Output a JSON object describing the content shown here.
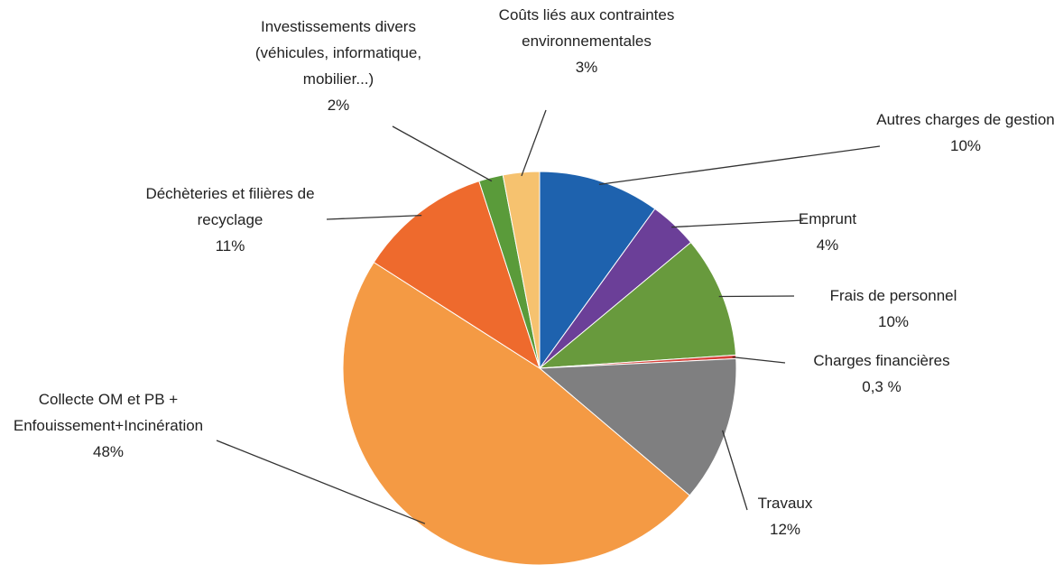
{
  "chart_data": {
    "type": "pie",
    "categories": [
      "Autres charges de gestion",
      "Emprunt",
      "Frais de personnel",
      "Charges financières",
      "Travaux",
      "Collecte OM et PB + Enfouissement+Incinération",
      "Déchèteries et filières de recyclage",
      "Investissements divers (véhicules, informatique, mobilier...)",
      "Coûts liés aux contraintes environnementales"
    ],
    "values": [
      10,
      4,
      10,
      0.3,
      12,
      48,
      11,
      2,
      3
    ],
    "value_labels": [
      "10%",
      "4%",
      "10%",
      "0,3 %",
      "12%",
      "48%",
      "11%",
      "2%",
      "3%"
    ],
    "colors": [
      "#1e62ae",
      "#6b3f98",
      "#689a3d",
      "#d8413a",
      "#7f7f80",
      "#f49a44",
      "#ee6a2d",
      "#5a9b3a",
      "#f6c26f"
    ]
  }
}
